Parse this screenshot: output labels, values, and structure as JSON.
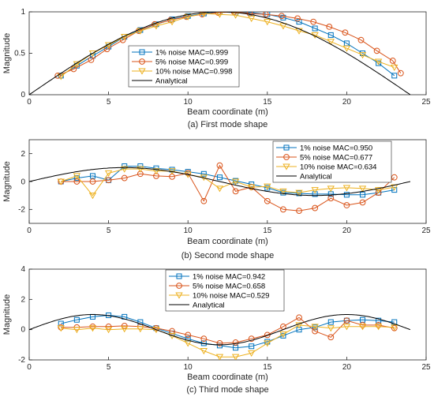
{
  "colors": {
    "axis": "#262626",
    "grid": "#d9d9d9"
  },
  "chart_data": [
    {
      "type": "line",
      "caption": "(a) First mode shape",
      "xlabel": "Beam coordinate (m)",
      "ylabel": "Magnitude",
      "xlim": [
        0,
        25
      ],
      "ylim": [
        0,
        1
      ],
      "xticks": [
        "0",
        "5",
        "10",
        "15",
        "20",
        "25"
      ],
      "yticks": [
        "0",
        "0.5",
        "1"
      ],
      "legend_position": "center-left",
      "series": [
        {
          "name": "1% noise MAC=0.999",
          "color": "#0072BD",
          "marker": "square",
          "x": [
            2,
            3,
            4,
            5,
            6,
            7,
            8,
            9,
            10,
            11,
            12,
            13,
            14,
            15,
            16,
            17,
            18,
            19,
            20,
            21,
            22,
            23
          ],
          "values": [
            0.23,
            0.35,
            0.47,
            0.58,
            0.7,
            0.78,
            0.85,
            0.91,
            0.95,
            0.98,
            1.0,
            0.99,
            0.99,
            0.97,
            0.93,
            0.88,
            0.8,
            0.72,
            0.62,
            0.5,
            0.38,
            0.23
          ]
        },
        {
          "name": "5% noise MAC=0.999",
          "color": "#D95319",
          "marker": "circle",
          "x": [
            1.8,
            2.8,
            3.9,
            4.9,
            5.9,
            6.9,
            7.9,
            8.9,
            9.9,
            10.9,
            11.9,
            12.9,
            13.9,
            14.9,
            15.9,
            16.9,
            17.9,
            18.9,
            19.9,
            20.9,
            21.9,
            22.9,
            23.4
          ],
          "values": [
            0.23,
            0.31,
            0.42,
            0.55,
            0.66,
            0.77,
            0.85,
            0.9,
            0.94,
            0.97,
            0.99,
            1.0,
            0.98,
            0.97,
            0.95,
            0.92,
            0.88,
            0.82,
            0.75,
            0.66,
            0.53,
            0.41,
            0.26
          ]
        },
        {
          "name": "10% noise MAC=0.998",
          "color": "#EDB120",
          "marker": "triangle-down",
          "x": [
            2,
            3,
            4,
            5,
            6,
            7,
            8,
            9,
            10,
            11,
            12,
            13,
            14,
            15,
            16,
            17,
            18,
            19,
            20,
            21,
            22,
            23
          ],
          "values": [
            0.22,
            0.37,
            0.5,
            0.6,
            0.7,
            0.77,
            0.83,
            0.88,
            0.94,
            0.98,
            0.97,
            0.96,
            0.92,
            0.88,
            0.83,
            0.77,
            0.72,
            0.64,
            0.56,
            0.48,
            0.4,
            0.33
          ]
        },
        {
          "name": "Analytical",
          "color": "#000000",
          "marker": "none",
          "kind": "sin1"
        }
      ]
    },
    {
      "type": "line",
      "caption": "(b) Second mode shape",
      "xlabel": "Beam coordinate (m)",
      "ylabel": "Magnitude",
      "xlim": [
        0,
        25
      ],
      "ylim": [
        -3,
        3
      ],
      "xticks": [
        "0",
        "5",
        "10",
        "15",
        "20",
        "25"
      ],
      "yticks": [
        "-2",
        "0",
        "2"
      ],
      "legend_position": "top-right",
      "series": [
        {
          "name": "1% noise MAC=0.950",
          "color": "#0072BD",
          "marker": "square",
          "x": [
            2,
            3,
            4,
            5,
            6,
            7,
            8,
            9,
            10,
            11,
            12,
            13,
            14,
            15,
            16,
            17,
            18,
            19,
            20,
            21,
            22,
            23
          ],
          "values": [
            0.0,
            0.25,
            0.4,
            0.1,
            1.1,
            1.1,
            0.95,
            0.85,
            0.7,
            0.55,
            0.3,
            0.05,
            -0.2,
            -0.45,
            -0.8,
            -0.85,
            -0.9,
            -0.9,
            -0.95,
            -0.95,
            -0.8,
            -0.6
          ]
        },
        {
          "name": "5% noise MAC=0.677",
          "color": "#D95319",
          "marker": "circle",
          "x": [
            2,
            3,
            4,
            5,
            6,
            7,
            8,
            9,
            10,
            11,
            12,
            13,
            14,
            15,
            16,
            17,
            18,
            19,
            20,
            21,
            22,
            23
          ],
          "values": [
            0.0,
            0.0,
            0.0,
            0.1,
            0.25,
            0.55,
            0.4,
            0.35,
            0.6,
            -1.4,
            1.15,
            -0.7,
            -0.4,
            -1.4,
            -2.0,
            -2.1,
            -1.9,
            -1.2,
            -1.7,
            -1.5,
            -0.8,
            0.3
          ]
        },
        {
          "name": "10% noise MAC=0.634",
          "color": "#EDB120",
          "marker": "triangle-down",
          "x": [
            2,
            3,
            4,
            5,
            6,
            7,
            8,
            9,
            10,
            11,
            12,
            13,
            14,
            15,
            16,
            17,
            18,
            19,
            20,
            21,
            22,
            23
          ],
          "values": [
            0.0,
            0.4,
            -1.0,
            0.6,
            0.9,
            0.9,
            0.75,
            0.75,
            0.5,
            0.3,
            -0.5,
            0.0,
            -0.4,
            -0.35,
            -0.7,
            -0.8,
            -0.6,
            -0.5,
            -0.45,
            -0.5,
            -0.6,
            -0.4
          ]
        },
        {
          "name": "Analytical",
          "color": "#000000",
          "marker": "none",
          "kind": "sin2"
        }
      ]
    },
    {
      "type": "line",
      "caption": "(c) Third mode shape",
      "xlabel": "Beam coordinate (m)",
      "ylabel": "Magnitude",
      "xlim": [
        0,
        25
      ],
      "ylim": [
        -2,
        4
      ],
      "xticks": [
        "0",
        "5",
        "10",
        "15",
        "20",
        "25"
      ],
      "yticks": [
        "-2",
        "0",
        "2",
        "4"
      ],
      "legend_position": "top-center",
      "series": [
        {
          "name": "1% noise MAC=0.942",
          "color": "#0072BD",
          "marker": "square",
          "x": [
            2,
            3,
            4,
            5,
            6,
            7,
            8,
            9,
            10,
            11,
            12,
            13,
            14,
            15,
            16,
            17,
            18,
            19,
            20,
            21,
            22,
            23
          ],
          "values": [
            0.4,
            0.65,
            0.85,
            0.95,
            0.85,
            0.5,
            0.1,
            -0.25,
            -0.6,
            -0.9,
            -1.05,
            -1.2,
            -1.1,
            -0.8,
            -0.4,
            0.0,
            0.15,
            0.5,
            0.6,
            0.65,
            0.6,
            0.5
          ]
        },
        {
          "name": "5% noise MAC=0.658",
          "color": "#D95319",
          "marker": "circle",
          "x": [
            2,
            3,
            4,
            5,
            6,
            7,
            8,
            9,
            10,
            11,
            12,
            13,
            14,
            15,
            16,
            17,
            18,
            19,
            20,
            21,
            22,
            23
          ],
          "values": [
            0.15,
            0.15,
            0.2,
            0.2,
            0.25,
            0.2,
            0.1,
            -0.1,
            -0.35,
            -0.6,
            -0.9,
            -0.85,
            -0.6,
            -0.35,
            0.2,
            0.8,
            -0.1,
            -0.5,
            0.6,
            0.3,
            0.3,
            0.1
          ]
        },
        {
          "name": "10% noise MAC=0.529",
          "color": "#EDB120",
          "marker": "triangle-down",
          "x": [
            2,
            3,
            4,
            5,
            6,
            7,
            8,
            9,
            10,
            11,
            12,
            13,
            14,
            15,
            16,
            17,
            18,
            19,
            20,
            21,
            22,
            23
          ],
          "values": [
            0.1,
            0.0,
            0.1,
            0.0,
            0.05,
            0.05,
            0.0,
            -0.4,
            -0.9,
            -1.4,
            -1.8,
            -1.8,
            -1.55,
            -0.9,
            -0.3,
            0.3,
            0.2,
            0.1,
            0.2,
            0.2,
            0.2,
            0.15
          ]
        },
        {
          "name": "Analytical",
          "color": "#000000",
          "marker": "none",
          "kind": "sin3"
        }
      ]
    }
  ]
}
